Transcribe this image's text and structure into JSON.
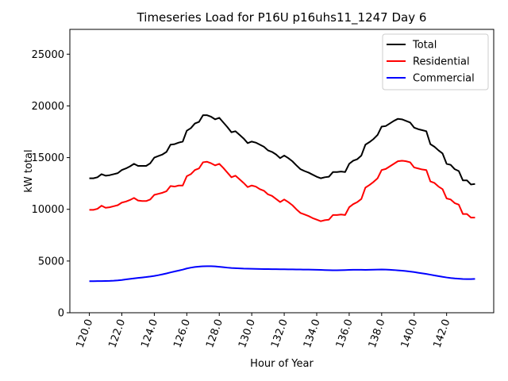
{
  "chart_data": {
    "type": "line",
    "title": "Timeseries Load for P16U p16uhs11_1247  Day 6",
    "xlabel": "Hour of Year",
    "ylabel": "kW total",
    "xlim": [
      118.8,
      144.9
    ],
    "ylim": [
      0,
      27400
    ],
    "grid": false,
    "legend_position": "top-right",
    "x_ticks": [
      120,
      122,
      124,
      126,
      128,
      130,
      132,
      134,
      136,
      138,
      140,
      142
    ],
    "x_tick_labels": [
      "120.0",
      "122.0",
      "124.0",
      "126.0",
      "128.0",
      "130.0",
      "132.0",
      "134.0",
      "136.0",
      "138.0",
      "140.0",
      "142.0"
    ],
    "y_ticks": [
      0,
      5000,
      10000,
      15000,
      20000,
      25000
    ],
    "y_tick_labels": [
      "0",
      "5000",
      "10000",
      "15000",
      "20000",
      "25000"
    ],
    "x": [
      120.0,
      120.25,
      120.5,
      120.75,
      121.0,
      121.25,
      121.5,
      121.75,
      122.0,
      122.25,
      122.5,
      122.75,
      123.0,
      123.25,
      123.5,
      123.75,
      124.0,
      124.25,
      124.5,
      124.75,
      125.0,
      125.25,
      125.5,
      125.75,
      126.0,
      126.25,
      126.5,
      126.75,
      127.0,
      127.25,
      127.5,
      127.75,
      128.0,
      128.25,
      128.5,
      128.75,
      129.0,
      129.25,
      129.5,
      129.75,
      130.0,
      130.25,
      130.5,
      130.75,
      131.0,
      131.25,
      131.5,
      131.75,
      132.0,
      132.25,
      132.5,
      132.75,
      133.0,
      133.25,
      133.5,
      133.75,
      134.0,
      134.25,
      134.5,
      134.75,
      135.0,
      135.25,
      135.5,
      135.75,
      136.0,
      136.25,
      136.5,
      136.75,
      137.0,
      137.25,
      137.5,
      137.75,
      138.0,
      138.25,
      138.5,
      138.75,
      139.0,
      139.25,
      139.5,
      139.75,
      140.0,
      140.25,
      140.5,
      140.75,
      141.0,
      141.25,
      141.5,
      141.75,
      142.0,
      142.25,
      142.5,
      142.75,
      143.0,
      143.25,
      143.5,
      143.75
    ],
    "series": [
      {
        "name": "Total",
        "color": "#000000",
        "values": [
          13000,
          13000,
          13100,
          13400,
          13250,
          13300,
          13400,
          13500,
          13800,
          13950,
          14150,
          14400,
          14200,
          14200,
          14200,
          14450,
          15000,
          15150,
          15300,
          15550,
          16250,
          16300,
          16450,
          16550,
          17600,
          17850,
          18300,
          18450,
          19100,
          19100,
          18950,
          18700,
          18850,
          18400,
          17950,
          17450,
          17550,
          17200,
          16850,
          16400,
          16550,
          16450,
          16250,
          16050,
          15700,
          15550,
          15300,
          14950,
          15200,
          14950,
          14650,
          14250,
          13880,
          13700,
          13550,
          13350,
          13150,
          13000,
          13100,
          13150,
          13600,
          13600,
          13650,
          13600,
          14400,
          14700,
          14850,
          15200,
          16250,
          16500,
          16800,
          17200,
          18000,
          18050,
          18300,
          18550,
          18750,
          18700,
          18550,
          18400,
          17900,
          17750,
          17650,
          17550,
          16300,
          16050,
          15700,
          15400,
          14400,
          14300,
          13880,
          13700,
          12800,
          12800,
          12400,
          12450
        ]
      },
      {
        "name": "Residential",
        "color": "#ff0000",
        "values": [
          9950,
          9950,
          10050,
          10350,
          10150,
          10200,
          10300,
          10400,
          10650,
          10750,
          10900,
          11100,
          10850,
          10800,
          10800,
          10950,
          11400,
          11500,
          11600,
          11750,
          12250,
          12200,
          12300,
          12300,
          13200,
          13400,
          13800,
          13950,
          14550,
          14600,
          14450,
          14250,
          14400,
          14000,
          13550,
          13100,
          13250,
          12900,
          12550,
          12150,
          12300,
          12200,
          11950,
          11800,
          11450,
          11300,
          11000,
          10700,
          10950,
          10700,
          10400,
          10000,
          9650,
          9500,
          9350,
          9150,
          9000,
          8850,
          8950,
          9000,
          9450,
          9450,
          9500,
          9450,
          10200,
          10500,
          10700,
          11000,
          12100,
          12350,
          12650,
          13000,
          13800,
          13900,
          14150,
          14400,
          14650,
          14700,
          14650,
          14550,
          14050,
          13950,
          13850,
          13800,
          12700,
          12550,
          12200,
          11950,
          11050,
          10950,
          10600,
          10450,
          9550,
          9550,
          9200,
          9200
        ]
      },
      {
        "name": "Commercial",
        "color": "#0000ff",
        "values": [
          3050,
          3050,
          3060,
          3060,
          3070,
          3080,
          3100,
          3130,
          3170,
          3220,
          3270,
          3320,
          3370,
          3410,
          3450,
          3500,
          3560,
          3630,
          3710,
          3800,
          3900,
          3990,
          4080,
          4170,
          4280,
          4360,
          4420,
          4460,
          4490,
          4500,
          4500,
          4480,
          4440,
          4400,
          4360,
          4330,
          4310,
          4290,
          4270,
          4260,
          4250,
          4240,
          4230,
          4225,
          4220,
          4215,
          4210,
          4205,
          4200,
          4195,
          4190,
          4185,
          4180,
          4175,
          4170,
          4160,
          4150,
          4140,
          4130,
          4120,
          4110,
          4110,
          4120,
          4130,
          4140,
          4150,
          4150,
          4150,
          4140,
          4150,
          4160,
          4170,
          4180,
          4170,
          4150,
          4130,
          4100,
          4070,
          4030,
          3980,
          3930,
          3870,
          3810,
          3750,
          3680,
          3610,
          3540,
          3470,
          3410,
          3360,
          3320,
          3290,
          3260,
          3250,
          3250,
          3270
        ]
      }
    ]
  }
}
